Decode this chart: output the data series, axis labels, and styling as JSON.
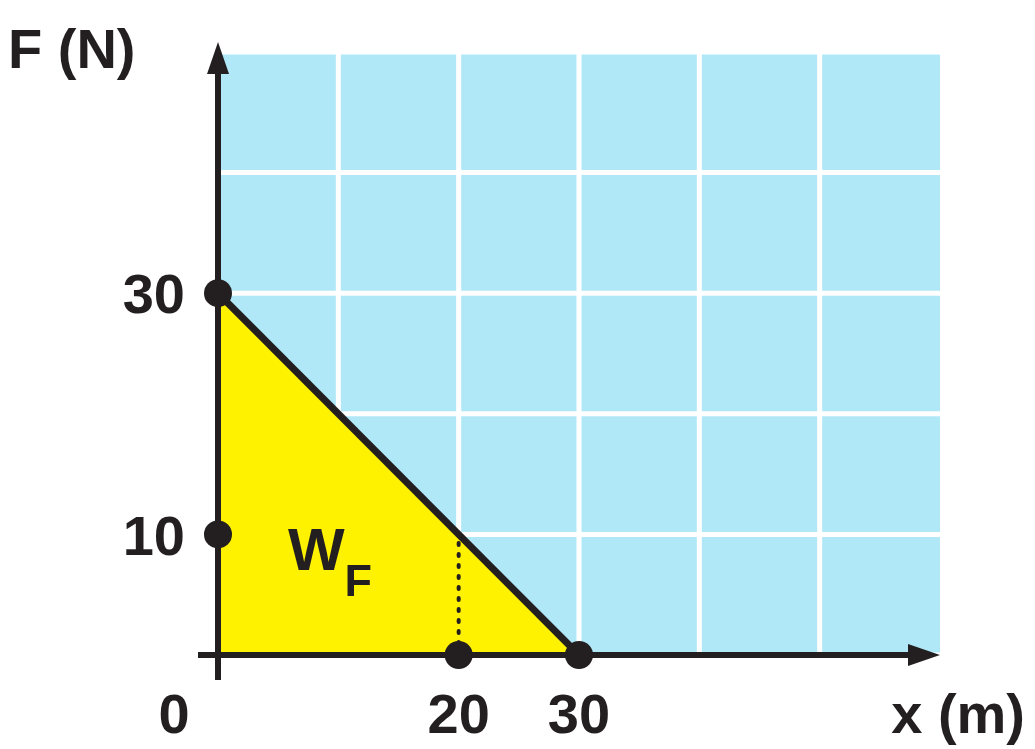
{
  "chart_data": {
    "type": "area",
    "xlabel": "x (m)",
    "ylabel": "F (N)",
    "xlim": [
      0,
      60
    ],
    "ylim": [
      0,
      50
    ],
    "xticks": [
      0,
      {
        "value": 10,
        "label": null
      },
      20,
      30,
      {
        "value": 40,
        "label": null
      },
      {
        "value": 50,
        "label": null
      }
    ],
    "yticks": [
      {
        "value": 0,
        "label": null
      },
      10,
      {
        "value": 20,
        "label": null
      },
      30,
      {
        "value": 40,
        "label": null
      },
      {
        "value": 50,
        "label": null
      }
    ],
    "grid": true,
    "series": [
      {
        "color": "#fff200",
        "x": [
          0,
          30
        ],
        "values": [
          30,
          0
        ]
      },
      {
        "type": "scatter",
        "marker": "circle",
        "color": "#231f20",
        "x": [
          0,
          0,
          20,
          30
        ],
        "values": [
          30,
          10,
          0,
          0
        ]
      }
    ],
    "ref_lines": [
      {
        "axis": "x",
        "value": 20,
        "line_style": "dotted"
      }
    ],
    "annotations": [
      "W$_{F}$"
    ]
  }
}
